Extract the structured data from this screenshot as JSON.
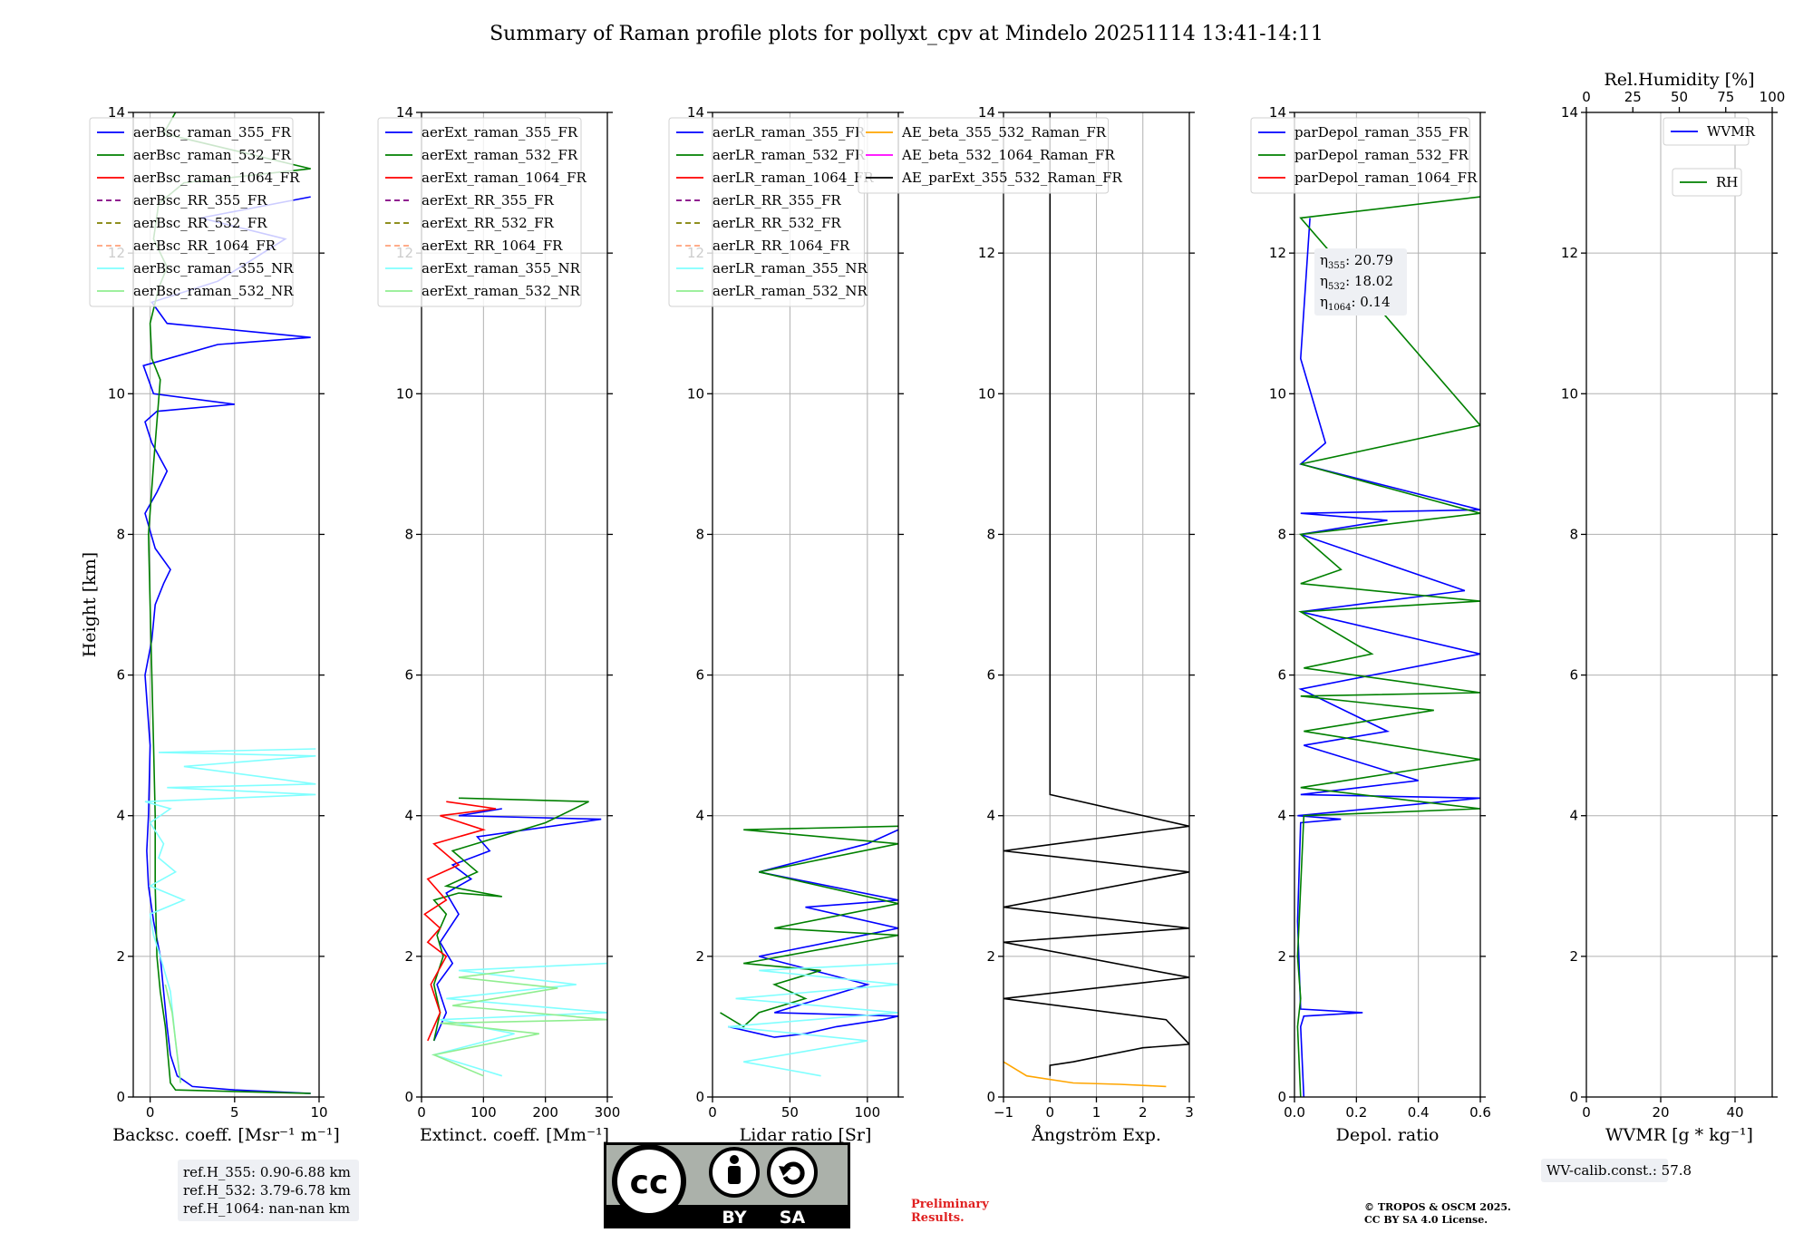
{
  "chart_data": [
    {
      "type": "line",
      "title": "Summary of Raman profile plots for pollyxt_cpv at Mindelo 20251114 13:41-14:11",
      "panel": "backscatter",
      "xlabel": "Backsc. coeff. [Msr⁻¹ m⁻¹]",
      "ylabel": "Height [km]",
      "xlim": [
        -1,
        10
      ],
      "ylim": [
        0,
        14
      ],
      "xticks": [
        0,
        5,
        10
      ],
      "yticks": [
        0,
        2,
        4,
        6,
        8,
        10,
        12,
        14
      ],
      "legend": [
        "aerBsc_raman_355_FR",
        "aerBsc_raman_532_FR",
        "aerBsc_raman_1064_FR",
        "aerBsc_RR_355_FR",
        "aerBsc_RR_532_FR",
        "aerBsc_RR_1064_FR",
        "aerBsc_raman_355_NR",
        "aerBsc_raman_532_NR"
      ],
      "legend_placement": "top-left",
      "series": [
        {
          "name": "aerBsc_raman_355_FR",
          "x": [
            9.5,
            5,
            2.5,
            1.6,
            1.2,
            1.0,
            0.8,
            0.6,
            0.2,
            -0.1,
            -0.2,
            -0.1,
            0.0,
            -0.3,
            0.1,
            0.3,
            0.8,
            1.2,
            0.3,
            -0.3,
            0.4,
            1.0,
            0.1,
            -0.3,
            0.4,
            5.0,
            0.2,
            -0.4,
            4.0,
            9.5,
            1.0,
            0.1,
            4.0,
            8.0,
            3.0,
            9.5
          ],
          "y": [
            0.05,
            0.1,
            0.15,
            0.3,
            0.6,
            1.0,
            1.5,
            2.0,
            2.5,
            3.0,
            3.5,
            4.0,
            5.0,
            6.0,
            6.5,
            7.0,
            7.3,
            7.5,
            7.8,
            8.3,
            8.6,
            8.9,
            9.3,
            9.6,
            9.75,
            9.85,
            10.0,
            10.4,
            10.7,
            10.8,
            11.0,
            11.3,
            11.6,
            12.2,
            12.5,
            12.8
          ]
        },
        {
          "name": "aerBsc_raman_532_FR",
          "x": [
            9.5,
            1.5,
            1.2,
            0.9,
            0.6,
            0.4,
            0.3,
            0.3,
            0.2,
            0.1,
            0.0,
            -0.1,
            0.2,
            0.6,
            0.1,
            0.0,
            0.5,
            1.0,
            0.2,
            0.5,
            2.0,
            9.5,
            0.8,
            1.5
          ],
          "y": [
            0.05,
            0.1,
            0.2,
            1.0,
            1.5,
            2.0,
            3.0,
            4.0,
            5.0,
            6.0,
            7.0,
            8.0,
            9.0,
            10.2,
            10.5,
            11.0,
            11.5,
            11.8,
            12.2,
            12.7,
            13.0,
            13.2,
            13.7,
            14.0
          ]
        },
        {
          "name": "aerBsc_raman_355_NR",
          "x": [
            1.8,
            1.5,
            1.2,
            0.6,
            0.2,
            0.0,
            2.0,
            0.0,
            1.5,
            0.5,
            0.8,
            0.0,
            1.2,
            -0.3,
            9.8,
            1.0,
            9.8,
            2.0,
            9.8,
            0.5,
            9.8
          ],
          "y": [
            0.2,
            0.8,
            1.5,
            2.0,
            2.3,
            2.6,
            2.8,
            3.0,
            3.2,
            3.4,
            3.6,
            3.9,
            4.1,
            4.2,
            4.3,
            4.4,
            4.45,
            4.7,
            4.85,
            4.9,
            4.95
          ]
        },
        {
          "name": "aerBsc_raman_532_NR",
          "x": [
            1.8,
            1.6,
            1.3,
            0.9
          ],
          "y": [
            0.2,
            0.6,
            1.2,
            1.6
          ]
        }
      ],
      "annotation": [
        "ref.H_355: 0.90-6.88 km",
        "ref.H_532: 3.79-6.78 km",
        "ref.H_1064: nan-nan km"
      ]
    },
    {
      "type": "line",
      "panel": "extinction",
      "xlabel": "Extinct. coeff. [Mm⁻¹]",
      "xlim": [
        0,
        300
      ],
      "ylim": [
        0,
        14
      ],
      "xticks": [
        0,
        100,
        200,
        300
      ],
      "yticks": [
        0,
        2,
        4,
        6,
        8,
        10,
        12,
        14
      ],
      "legend": [
        "aerExt_raman_355_FR",
        "aerExt_raman_532_FR",
        "aerExt_raman_1064_FR",
        "aerExt_RR_355_FR",
        "aerExt_RR_532_FR",
        "aerExt_RR_1064_FR",
        "aerExt_raman_355_NR",
        "aerExt_raman_532_NR"
      ],
      "legend_placement": "top-left",
      "series": [
        {
          "name": "aerExt_raman_355_FR",
          "x": [
            20,
            40,
            25,
            50,
            30,
            60,
            40,
            80,
            50,
            110,
            90,
            290,
            60,
            130
          ],
          "y": [
            0.8,
            1.2,
            1.6,
            1.9,
            2.2,
            2.6,
            2.9,
            3.1,
            3.3,
            3.5,
            3.7,
            3.95,
            4.0,
            4.1
          ]
        },
        {
          "name": "aerExt_raman_532_FR",
          "x": [
            20,
            30,
            20,
            35,
            25,
            40,
            20,
            60,
            130,
            40,
            90,
            50,
            200,
            270,
            60
          ],
          "y": [
            0.8,
            1.2,
            1.6,
            2.0,
            2.3,
            2.6,
            2.8,
            2.9,
            2.85,
            3.0,
            3.2,
            3.5,
            3.9,
            4.2,
            4.25
          ]
        },
        {
          "name": "aerExt_raman_1064_FR",
          "x": [
            10,
            30,
            15,
            40,
            10,
            30,
            5,
            40,
            10,
            60,
            20,
            100,
            30,
            120,
            40
          ],
          "y": [
            0.8,
            1.2,
            1.6,
            2.0,
            2.2,
            2.4,
            2.6,
            2.8,
            3.1,
            3.3,
            3.6,
            3.8,
            4.0,
            4.1,
            4.2
          ]
        },
        {
          "name": "aerExt_raman_355_NR",
          "x": [
            130,
            20,
            150,
            30,
            300,
            40,
            250,
            60,
            300
          ],
          "y": [
            0.3,
            0.6,
            0.9,
            1.1,
            1.2,
            1.4,
            1.6,
            1.8,
            1.9
          ]
        },
        {
          "name": "aerExt_raman_532_NR",
          "x": [
            100,
            20,
            190,
            30,
            300,
            50,
            220,
            60,
            150
          ],
          "y": [
            0.3,
            0.6,
            0.9,
            1.05,
            1.1,
            1.3,
            1.55,
            1.7,
            1.8
          ]
        }
      ]
    },
    {
      "type": "line",
      "panel": "lidar_ratio",
      "xlabel": "Lidar ratio [Sr]",
      "xlim": [
        0,
        120
      ],
      "ylim": [
        0,
        14
      ],
      "xticks": [
        0,
        50,
        100
      ],
      "yticks": [
        0,
        2,
        4,
        6,
        8,
        10,
        12,
        14
      ],
      "legend": [
        "aerLR_raman_355_FR",
        "aerLR_raman_532_FR",
        "aerLR_raman_1064_FR",
        "aerLR_RR_355_FR",
        "aerLR_RR_532_FR",
        "aerLR_RR_1064_FR",
        "aerLR_raman_355_NR",
        "aerLR_raman_532_NR"
      ],
      "legend_placement": "top-left",
      "series": [
        {
          "name": "aerLR_raman_355_FR",
          "x": [
            10,
            30,
            40,
            60,
            80,
            110,
            120,
            40,
            100,
            30,
            120,
            60,
            120,
            30,
            100,
            120
          ],
          "y": [
            1.0,
            0.9,
            0.85,
            0.9,
            1.0,
            1.1,
            1.15,
            1.2,
            1.6,
            2.0,
            2.4,
            2.7,
            2.8,
            3.2,
            3.6,
            3.8
          ]
        },
        {
          "name": "aerLR_raman_532_FR",
          "x": [
            5,
            20,
            30,
            60,
            40,
            70,
            20,
            120,
            40,
            120,
            30,
            120,
            20,
            120
          ],
          "y": [
            1.2,
            1.0,
            1.2,
            1.4,
            1.6,
            1.8,
            1.9,
            2.3,
            2.4,
            2.75,
            3.2,
            3.6,
            3.8,
            3.85
          ]
        },
        {
          "name": "aerLR_raman_355_NR",
          "x": [
            70,
            20,
            100,
            10,
            120,
            15,
            120,
            30,
            120
          ],
          "y": [
            0.3,
            0.5,
            0.8,
            1.0,
            1.2,
            1.4,
            1.6,
            1.8,
            1.9
          ]
        }
      ]
    },
    {
      "type": "line",
      "panel": "angstrom",
      "xlabel": "Ångström Exp.",
      "xlim": [
        -1,
        3
      ],
      "ylim": [
        0,
        14
      ],
      "xticks": [
        -1,
        0,
        1,
        2,
        3
      ],
      "yticks": [
        0,
        2,
        4,
        6,
        8,
        10,
        12,
        14
      ],
      "legend": [
        "AE_beta_355_532_Raman_FR",
        "AE_beta_532_1064_Raman_FR",
        "AE_parExt_355_532_Raman_FR"
      ],
      "legend_placement": "top-left",
      "series": [
        {
          "name": "AE_beta_355_532_Raman_FR",
          "x": [
            -1,
            -0.5,
            0.5,
            1.5,
            2.5
          ],
          "y": [
            0.5,
            0.3,
            0.2,
            0.18,
            0.15
          ]
        },
        {
          "name": "AE_parExt_355_532_Raman_FR",
          "x": [
            0,
            0,
            0.5,
            2.0,
            3.0,
            2.5,
            -1,
            3,
            -1,
            3,
            -1,
            3,
            -1,
            3,
            0,
            0
          ],
          "y": [
            0.3,
            0.45,
            0.5,
            0.7,
            0.75,
            1.1,
            1.4,
            1.7,
            2.2,
            2.4,
            2.7,
            3.2,
            3.5,
            3.85,
            4.3,
            14.0
          ]
        }
      ]
    },
    {
      "type": "line",
      "panel": "depolarization",
      "xlabel": "Depol. ratio",
      "xlim": [
        0,
        0.6
      ],
      "ylim": [
        0,
        14
      ],
      "xticks": [
        0.0,
        0.2,
        0.4,
        0.6
      ],
      "yticks": [
        0,
        2,
        4,
        6,
        8,
        10,
        12,
        14
      ],
      "legend": [
        "parDepol_raman_355_FR",
        "parDepol_raman_532_FR",
        "parDepol_raman_1064_FR"
      ],
      "legend_placement": "top-left",
      "series": [
        {
          "name": "parDepol_raman_355_FR",
          "x": [
            0.03,
            0.02,
            0.03,
            0.22,
            0.02,
            0.01,
            0.02,
            0.15,
            0.01,
            0.6,
            0.02,
            0.4,
            0.03,
            0.3,
            0.02,
            0.6,
            0.02,
            0.55,
            0.02,
            0.3,
            0.02,
            0.6,
            0.02,
            0.1,
            0.02,
            0.05
          ],
          "y": [
            0.0,
            1.0,
            1.15,
            1.2,
            1.25,
            2.5,
            3.9,
            3.95,
            4.0,
            4.25,
            4.3,
            4.5,
            5.0,
            5.2,
            5.8,
            6.3,
            6.9,
            7.2,
            8.0,
            8.2,
            8.3,
            8.35,
            9.0,
            9.3,
            10.5,
            12.5
          ]
        },
        {
          "name": "parDepol_raman_532_FR",
          "x": [
            0.02,
            0.01,
            0.02,
            0.01,
            0.03,
            0.6,
            0.02,
            0.6,
            0.03,
            0.45,
            0.02,
            0.6,
            0.03,
            0.25,
            0.02,
            0.6,
            0.02,
            0.15,
            0.02,
            0.6,
            0.02,
            0.6,
            0.02,
            0.6
          ],
          "y": [
            0.0,
            1.0,
            1.4,
            2.0,
            4.0,
            4.1,
            4.4,
            4.8,
            5.2,
            5.5,
            5.7,
            5.75,
            6.1,
            6.3,
            6.9,
            7.05,
            7.3,
            7.5,
            8.0,
            8.3,
            9.0,
            9.55,
            12.5,
            12.8
          ]
        }
      ],
      "annotation": {
        "eta_355": "20.79",
        "eta_532": "18.02",
        "eta_1064": "0.14"
      }
    },
    {
      "type": "line",
      "panel": "water_vapor",
      "xlabel": "WVMR [g * kg⁻¹]",
      "x2label": "Rel.Humidity [%]",
      "xlim": [
        0,
        50
      ],
      "x2lim": [
        0,
        100
      ],
      "ylim": [
        0,
        14
      ],
      "xticks": [
        0,
        20,
        40
      ],
      "x2ticks": [
        0,
        25,
        50,
        75,
        100
      ],
      "yticks": [
        0,
        2,
        4,
        6,
        8,
        10,
        12,
        14
      ],
      "legend": [
        "WVMR",
        "RH"
      ],
      "legend_placement": "top-right",
      "series": [],
      "annotation": "WV-calib.const.: 57.8"
    }
  ],
  "figure": {
    "title": "Summary of Raman profile plots for pollyxt_cpv at Mindelo 20251114 13:41-14:11",
    "license_badge": {
      "cc": "cc",
      "by": "BY",
      "sa": "SA"
    },
    "preliminary": [
      "Preliminary",
      "Results."
    ],
    "copyright": [
      "© TROPOS & OSCM 2025.",
      "CC BY SA 4.0 License."
    ]
  },
  "colors": {
    "blue": "#0000ff",
    "green": "#008000",
    "red": "#ff0000",
    "cyan": "#80ffff",
    "lightgreen": "#90ee90",
    "purple": "#800080",
    "olive": "#808000",
    "salmon": "#ffa07a",
    "orange": "#ffa500",
    "magenta": "#ff00ff",
    "black": "#000000",
    "grid": "#b0b0b0"
  }
}
